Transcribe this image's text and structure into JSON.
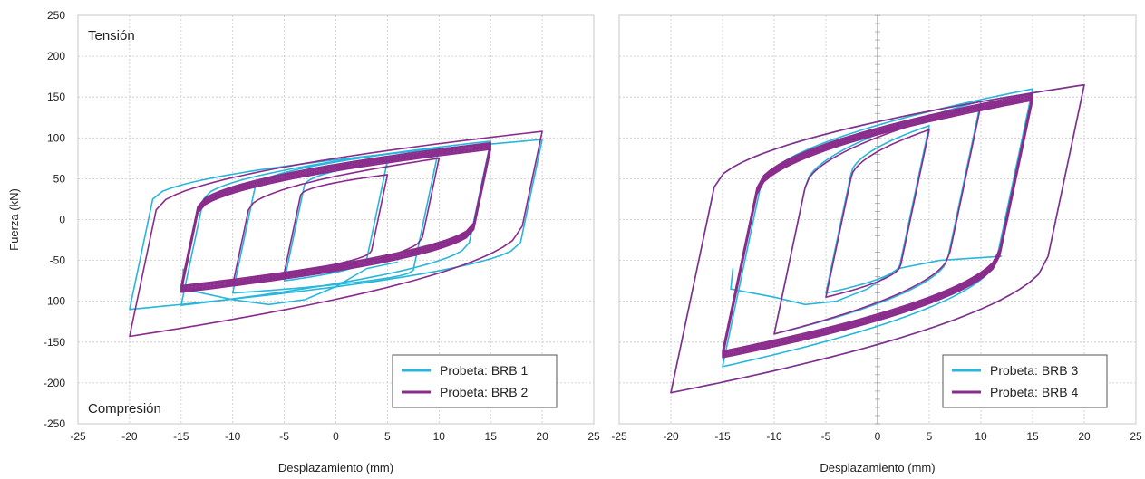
{
  "colors": {
    "series1": "#29B6DA",
    "series2": "#8A2C8C",
    "grid": "#C8C8C8",
    "axis": "#888888",
    "text": "#222222"
  },
  "chart_data": [
    {
      "type": "line",
      "xlabel": "Desplazamiento (mm)",
      "ylabel": "Fuerza (kN)",
      "xlim": [
        -25,
        25
      ],
      "ylim": [
        -250,
        250
      ],
      "xticks": [
        -25,
        -20,
        -15,
        -10,
        -5,
        0,
        5,
        10,
        15,
        20,
        25
      ],
      "yticks": [
        250,
        200,
        150,
        100,
        50,
        0,
        -50,
        -100,
        -150,
        -200,
        -250
      ],
      "grid": true,
      "legend_position": "bottom-right",
      "annotations": {
        "top": "Tensión",
        "bottom": "Compresión"
      },
      "series": [
        {
          "name": "Probeta: BRB 1",
          "color": "#29B6DA",
          "loops": [
            {
              "xmin": -5,
              "xmax": 5,
              "ymin": -75,
              "ymax": 72,
              "yld_top": 42,
              "yld_bot": -50,
              "k": 1
            },
            {
              "xmin": -10,
              "xmax": 10,
              "ymin": -90,
              "ymax": 88,
              "yld_top": 40,
              "yld_bot": -62,
              "k": 1
            },
            {
              "xmin": -15,
              "xmax": 15,
              "ymin": -105,
              "ymax": 96,
              "yld_top": 25,
              "yld_bot": -28,
              "k": 1
            },
            {
              "xmin": -20,
              "xmax": 20,
              "ymin": -110,
              "ymax": 98,
              "yld_top": 25,
              "yld_bot": -28,
              "k": 1
            }
          ],
          "extra": [
            [
              -14.8,
              -60
            ],
            [
              -14.8,
              -85
            ],
            [
              -10,
              -98
            ],
            [
              -6.5,
              -104
            ],
            [
              -3,
              -98
            ],
            [
              0,
              -82
            ],
            [
              3,
              -60
            ],
            [
              6,
              -52
            ]
          ]
        },
        {
          "name": "Probeta: BRB 2",
          "color": "#8A2C8C",
          "loops": [
            {
              "xmin": -5,
              "xmax": 5,
              "ymin": -65,
              "ymax": 55,
              "yld_top": 30,
              "yld_bot": -38,
              "k": 1
            },
            {
              "xmin": -10,
              "xmax": 10,
              "ymin": -80,
              "ymax": 75,
              "yld_top": 12,
              "yld_bot": -22,
              "k": 1
            },
            {
              "xmin": -15,
              "xmax": 15,
              "ymin": -85,
              "ymax": 90,
              "yld_top": 12,
              "yld_bot": -8,
              "k": 6
            },
            {
              "xmin": -20,
              "xmax": 20,
              "ymin": -143,
              "ymax": 108,
              "yld_top": 12,
              "yld_bot": -8,
              "k": 1
            }
          ]
        }
      ]
    },
    {
      "type": "line",
      "xlabel": "Desplazamiento (mm)",
      "ylabel": "",
      "xlim": [
        -25,
        25
      ],
      "ylim": [
        -250,
        250
      ],
      "xticks": [
        -25,
        -20,
        -15,
        -10,
        -5,
        0,
        5,
        10,
        15,
        20,
        25
      ],
      "yticks": [],
      "grid": true,
      "legend_position": "bottom-right",
      "series": [
        {
          "name": "Probeta: BRB 3",
          "color": "#29B6DA",
          "loops": [
            {
              "xmin": -5,
              "xmax": 5,
              "ymin": -90,
              "ymax": 115,
              "yld_top": 55,
              "yld_bot": -55,
              "k": 1
            },
            {
              "xmin": -10,
              "xmax": 10,
              "ymin": -140,
              "ymax": 145,
              "yld_top": 40,
              "yld_bot": -45,
              "k": 1
            },
            {
              "xmin": -15,
              "xmax": 15,
              "ymin": -180,
              "ymax": 160,
              "yld_top": 40,
              "yld_bot": -45,
              "k": 1
            },
            {
              "xmin": -20,
              "xmax": 20,
              "ymin": -212,
              "ymax": 165,
              "yld_top": 40,
              "yld_bot": -45,
              "k": 1
            }
          ],
          "extra": [
            [
              -14,
              -60
            ],
            [
              -14.2,
              -85
            ],
            [
              -10,
              -95
            ],
            [
              -7,
              -104
            ],
            [
              -4,
              -100
            ],
            [
              -1,
              -85
            ],
            [
              2,
              -60
            ],
            [
              6,
              -50
            ],
            [
              12,
              -45
            ]
          ]
        },
        {
          "name": "Probeta: BRB 4",
          "color": "#8A2C8C",
          "loops": [
            {
              "xmin": -5,
              "xmax": 5,
              "ymin": -95,
              "ymax": 110,
              "yld_top": 50,
              "yld_bot": -55,
              "k": 1
            },
            {
              "xmin": -10,
              "xmax": 10,
              "ymin": -140,
              "ymax": 140,
              "yld_top": 38,
              "yld_bot": -40,
              "k": 1
            },
            {
              "xmin": -15,
              "xmax": 15,
              "ymin": -165,
              "ymax": 150,
              "yld_top": 35,
              "yld_bot": -40,
              "k": 6
            },
            {
              "xmin": -20,
              "xmax": 20,
              "ymin": -212,
              "ymax": 165,
              "yld_top": 40,
              "yld_bot": -45,
              "k": 1
            }
          ]
        }
      ]
    }
  ]
}
